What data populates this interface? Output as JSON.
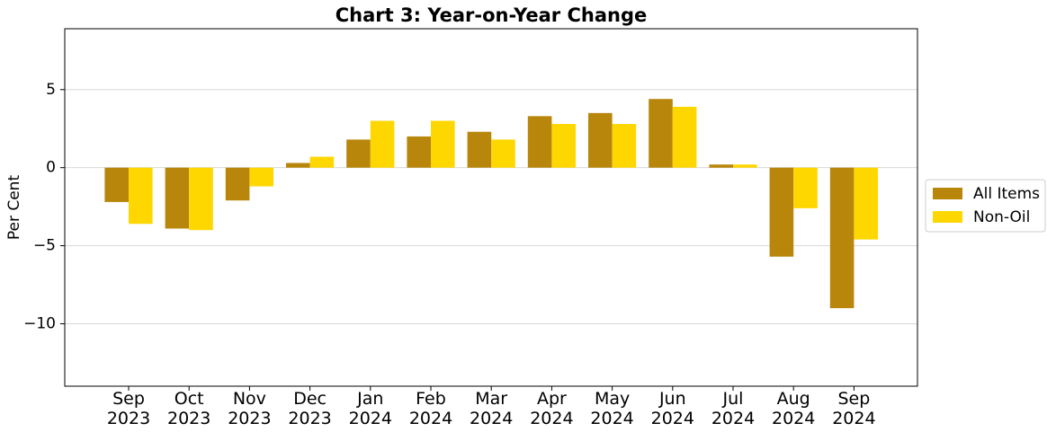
{
  "chart_data": {
    "type": "bar",
    "title": "Chart 3: Year-on-Year Change",
    "y_label": "Per Cent",
    "categories": [
      "Sep 2023",
      "Oct 2023",
      "Nov 2023",
      "Dec 2023",
      "Jan 2024",
      "Feb 2024",
      "Mar 2024",
      "Apr 2024",
      "May 2024",
      "Jun 2024",
      "Jul 2024",
      "Aug 2024",
      "Sep 2024"
    ],
    "series": [
      {
        "name": "All Items",
        "color": "#b8860b",
        "values": [
          -2.2,
          -3.9,
          -2.1,
          0.3,
          1.8,
          2.0,
          2.3,
          3.3,
          3.5,
          4.4,
          0.2,
          -5.7,
          -9.0
        ]
      },
      {
        "name": "Non-Oil",
        "color": "#ffd700",
        "values": [
          -3.6,
          -4.0,
          -1.2,
          0.7,
          3.0,
          3.0,
          1.8,
          2.8,
          2.8,
          3.9,
          0.2,
          -2.6,
          -4.6
        ]
      }
    ],
    "ylim": [
      -14,
      8.9
    ],
    "yticks": [
      {
        "value": -10,
        "label": "−10"
      },
      {
        "value": -5,
        "label": "−5"
      },
      0,
      5
    ],
    "grid": true,
    "legend": "right"
  }
}
